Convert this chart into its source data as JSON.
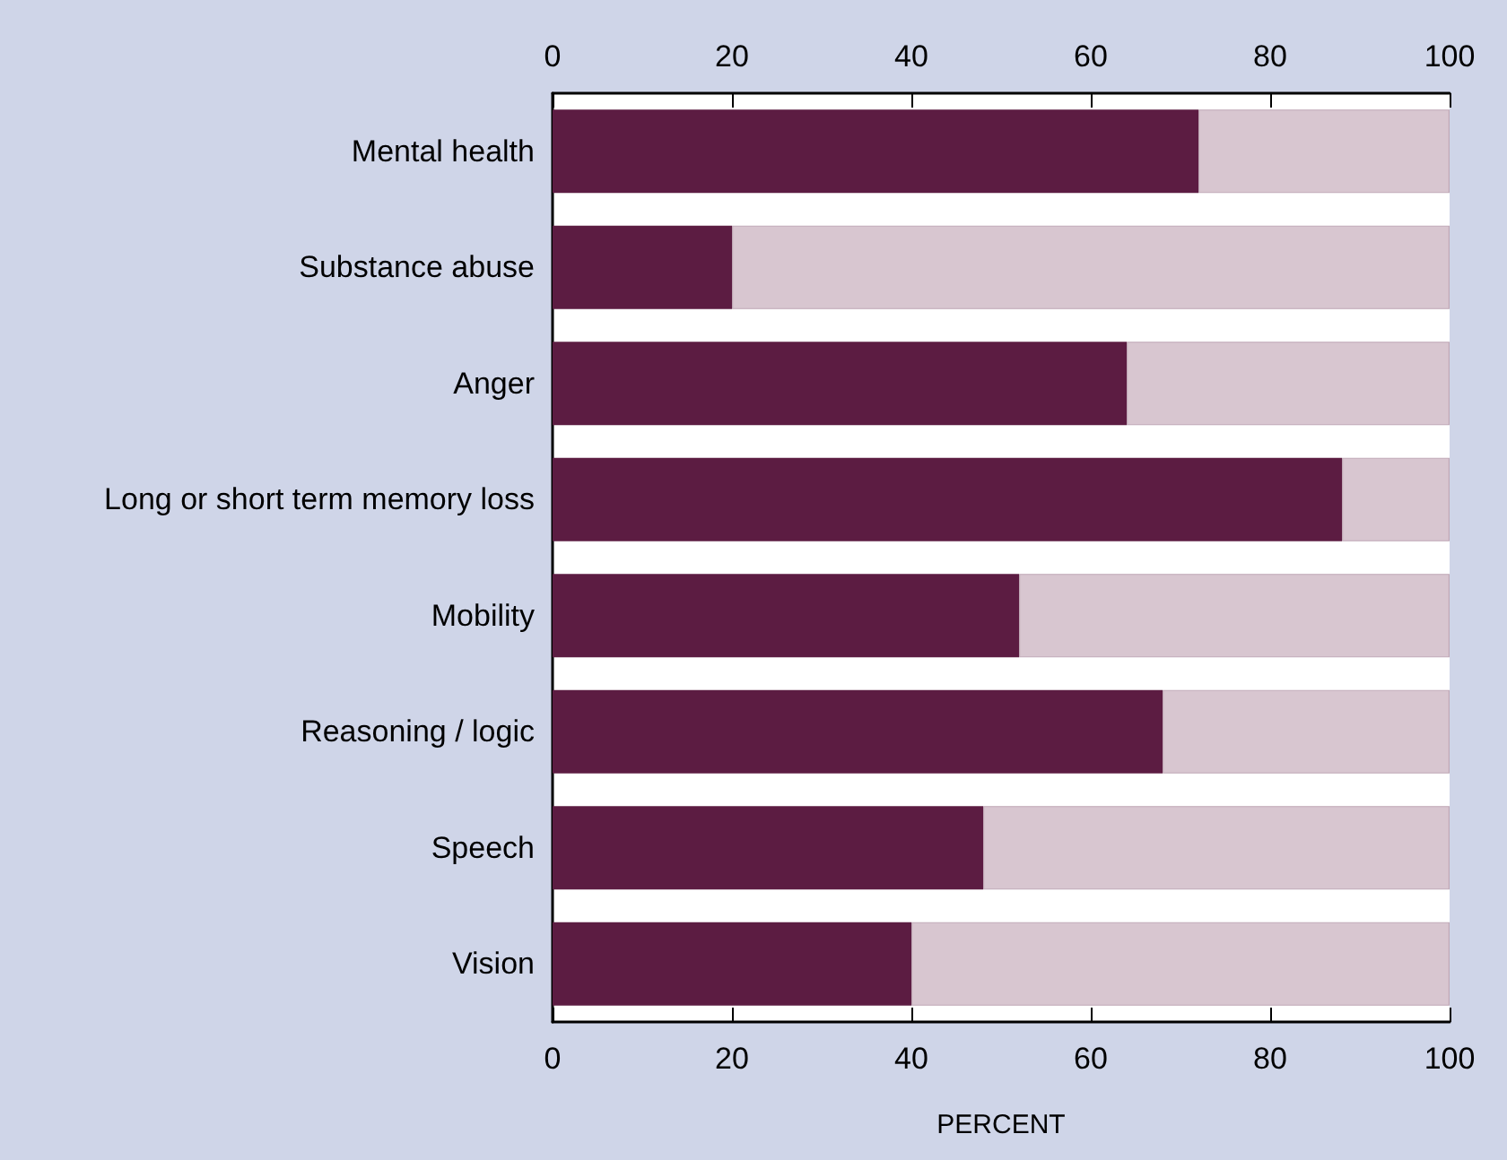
{
  "chart_data": {
    "type": "bar",
    "orientation": "horizontal",
    "stacked": true,
    "xlabel": "PERCENT",
    "categories": [
      "Mental health",
      "Substance abuse",
      "Anger",
      "Long or short term memory loss",
      "Mobility",
      "Reasoning / logic",
      "Speech",
      "Vision"
    ],
    "series": [
      {
        "color": "#5c1c42",
        "values": [
          72,
          20,
          64,
          88,
          52,
          68,
          48,
          40
        ]
      },
      {
        "color": "#d8c6d0",
        "values": [
          28,
          80,
          36,
          12,
          48,
          32,
          52,
          60
        ]
      }
    ],
    "xlim": [
      0,
      100
    ],
    "xticks": [
      0,
      20,
      40,
      60,
      80,
      100
    ],
    "x2lim": [
      0,
      100
    ],
    "x2ticks": [
      0,
      20,
      40,
      60,
      80,
      100
    ]
  }
}
